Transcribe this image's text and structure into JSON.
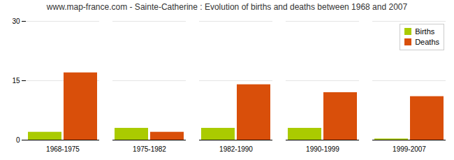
{
  "chart_data": {
    "type": "bar",
    "title": "www.map-france.com - Sainte-Catherine : Evolution of births and deaths between 1968 and 2007",
    "categories": [
      "1968-1975",
      "1975-1982",
      "1982-1990",
      "1990-1999",
      "1999-2007"
    ],
    "series": [
      {
        "name": "Births",
        "color": "#aacb00",
        "values": [
          2,
          3,
          3,
          3,
          0.3
        ]
      },
      {
        "name": "Deaths",
        "color": "#d94f0a",
        "values": [
          17,
          2,
          14,
          12,
          11
        ]
      }
    ],
    "ylim": [
      0,
      30
    ],
    "yticks": [
      0,
      15,
      30
    ],
    "grid": true,
    "legend": "upper right"
  }
}
